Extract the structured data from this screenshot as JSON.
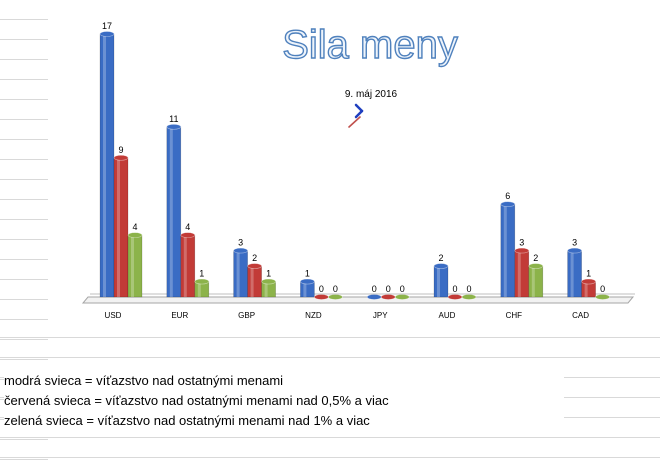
{
  "chart_data": {
    "type": "bar",
    "title": "Sila meny",
    "subtitle": "9. máj 2016",
    "categories": [
      "USD",
      "EUR",
      "GBP",
      "NZD",
      "JPY",
      "AUD",
      "CHF",
      "CAD"
    ],
    "series": [
      {
        "values": [
          17,
          11,
          3,
          1,
          0,
          2,
          6,
          3
        ],
        "color": "#3a6cc4"
      },
      {
        "values": [
          9,
          4,
          2,
          0,
          0,
          0,
          3,
          1
        ],
        "color": "#c23b37"
      },
      {
        "values": [
          4,
          1,
          1,
          0,
          0,
          0,
          2,
          0
        ],
        "color": "#8cb34a"
      }
    ],
    "ylim": [
      0,
      17
    ],
    "grid": false,
    "legend": "none"
  },
  "notes": [
    "modrá svieca = víťazstvo nad ostatnými menami",
    "červená svieca = víťazstvo nad ostatnými menami nad 0,5% a viac",
    "zelená svieca = víťazstvo nad ostatnými menami nad 1% a viac"
  ],
  "colors": {
    "title_fill": "#ffffff",
    "title_stroke": "#4f81bd",
    "clock_hand_hour": "#c0504d",
    "clock_hand_minute": "#1f3fbf"
  }
}
